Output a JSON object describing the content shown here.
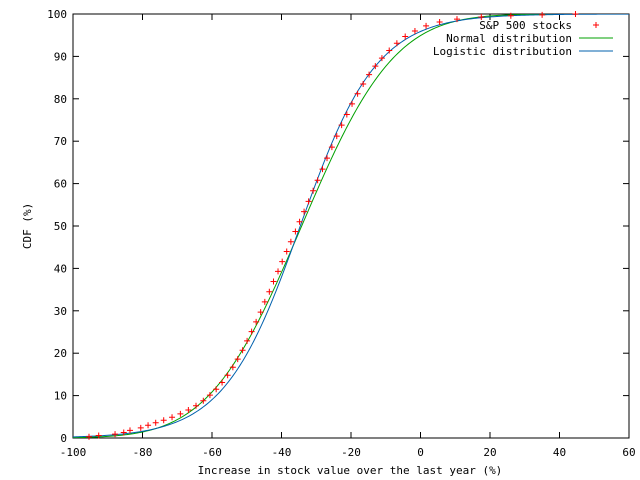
{
  "chart_data": {
    "type": "scatter",
    "xlabel": "Increase in stock value over the last year (%)",
    "ylabel": "CDF (%)",
    "xlim": [
      -100,
      60
    ],
    "ylim": [
      0,
      100
    ],
    "xticks": [
      -100,
      -80,
      -60,
      -40,
      -20,
      0,
      20,
      40,
      60
    ],
    "yticks": [
      0,
      10,
      20,
      30,
      40,
      50,
      60,
      70,
      80,
      90,
      100
    ],
    "xtick_labels": [
      "-100",
      "-80",
      "-60",
      "-40",
      "-20",
      "0",
      "20",
      "40",
      "60"
    ],
    "ytick_labels": [
      "0",
      "10",
      "20",
      "30",
      "40",
      "50",
      "60",
      "70",
      "80",
      "90",
      "100"
    ],
    "grid": false,
    "legend_position": "top-right",
    "series": [
      {
        "name": "S&P 500 stocks",
        "kind": "points",
        "marker": "plus",
        "color": "#ff0000",
        "points": [
          [
            -95.4,
            0.3
          ],
          [
            -92.6,
            0.6
          ],
          [
            -87.9,
            0.9
          ],
          [
            -85.4,
            1.3
          ],
          [
            -83.6,
            1.8
          ],
          [
            -80.5,
            2.4
          ],
          [
            -78.4,
            3.0
          ],
          [
            -76.2,
            3.6
          ],
          [
            -73.9,
            4.2
          ],
          [
            -71.5,
            4.9
          ],
          [
            -69.1,
            5.7
          ],
          [
            -66.8,
            6.6
          ],
          [
            -64.6,
            7.6
          ],
          [
            -62.5,
            8.8
          ],
          [
            -60.6,
            10.1
          ],
          [
            -58.8,
            11.5
          ],
          [
            -57.1,
            13.1
          ],
          [
            -55.5,
            14.8
          ],
          [
            -54.0,
            16.7
          ],
          [
            -52.6,
            18.6
          ],
          [
            -51.2,
            20.7
          ],
          [
            -49.9,
            22.9
          ],
          [
            -48.6,
            25.1
          ],
          [
            -47.3,
            27.4
          ],
          [
            -46.0,
            29.7
          ],
          [
            -44.8,
            32.1
          ],
          [
            -43.5,
            34.5
          ],
          [
            -42.3,
            36.9
          ],
          [
            -41.0,
            39.3
          ],
          [
            -39.8,
            41.6
          ],
          [
            -38.5,
            44.0
          ],
          [
            -37.3,
            46.3
          ],
          [
            -36.0,
            48.7
          ],
          [
            -34.8,
            51.0
          ],
          [
            -33.5,
            53.4
          ],
          [
            -32.2,
            55.8
          ],
          [
            -30.9,
            58.3
          ],
          [
            -29.6,
            60.8
          ],
          [
            -28.2,
            63.4
          ],
          [
            -26.9,
            66.0
          ],
          [
            -25.5,
            68.6
          ],
          [
            -24.1,
            71.2
          ],
          [
            -22.7,
            73.8
          ],
          [
            -21.2,
            76.3
          ],
          [
            -19.7,
            78.8
          ],
          [
            -18.1,
            81.2
          ],
          [
            -16.5,
            83.5
          ],
          [
            -14.8,
            85.7
          ],
          [
            -13.0,
            87.7
          ],
          [
            -11.1,
            89.6
          ],
          [
            -9.0,
            91.4
          ],
          [
            -6.8,
            93.1
          ],
          [
            -4.4,
            94.7
          ],
          [
            -1.6,
            96.0
          ],
          [
            1.6,
            97.2
          ],
          [
            5.5,
            98.1
          ],
          [
            10.5,
            98.8
          ],
          [
            17.5,
            99.3
          ],
          [
            26.0,
            99.6
          ],
          [
            35.0,
            99.8
          ],
          [
            44.6,
            100.0
          ]
        ]
      },
      {
        "name": "Normal distribution",
        "kind": "normal",
        "mean": -34.2,
        "sd": 20.9,
        "color": "#00a000"
      },
      {
        "name": "Logistic distribution",
        "kind": "logistic",
        "location": -34.6,
        "scale": 11.0,
        "color": "#0060ad"
      }
    ]
  }
}
